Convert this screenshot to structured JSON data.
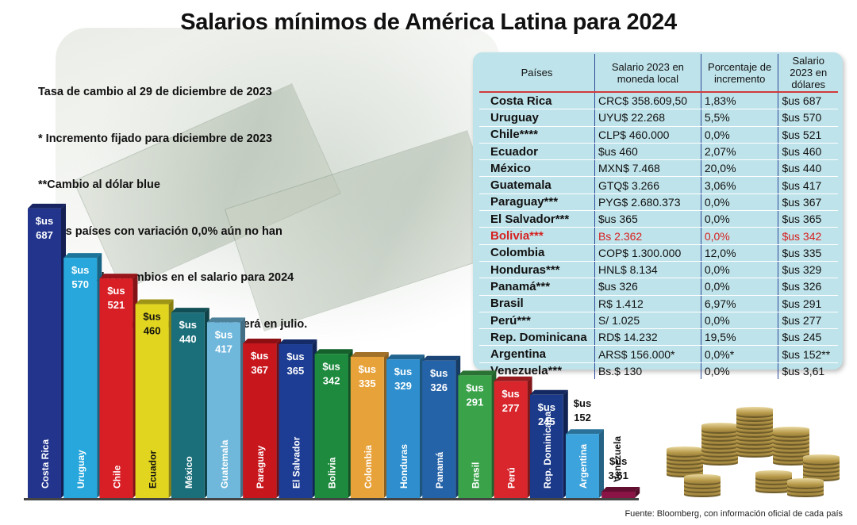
{
  "title": "Salarios mínimos de América Latina para 2024",
  "notes": [
    "Tasa de cambio al 29 de diciembre de 2023",
    "* Incremento fijado para diciembre de 2023",
    "**Cambio al dólar blue",
    "***Los países con variación 0,0% aún no han",
    "anunciados cambios en el salario para 2024",
    "****El siguiente incremento en Chile será en julio."
  ],
  "source": "Fuente: Bloomberg, con información oficial de cada país",
  "table": {
    "headers": [
      "Países",
      "Salario 2023 en moneda local",
      "Porcentaje de incremento",
      "Salario 2023 en dólares"
    ],
    "rows": [
      [
        "Costa Rica",
        "CRC$ 358.609,50",
        "1,83%",
        "$us 687"
      ],
      [
        "Uruguay",
        "UYU$ 22.268",
        "5,5%",
        "$us 570"
      ],
      [
        "Chile****",
        "CLP$ 460.000",
        "0,0%",
        "$us 521"
      ],
      [
        "Ecuador",
        "$us 460",
        "2,07%",
        "$us 460"
      ],
      [
        "México",
        "MXN$ 7.468",
        "20,0%",
        "$us 440"
      ],
      [
        "Guatemala",
        "GTQ$ 3.266",
        "3,06%",
        "$us 417"
      ],
      [
        "Paraguay***",
        "PYG$ 2.680.373",
        "0,0%",
        "$us 367"
      ],
      [
        "El Salvador***",
        "$us 365",
        "0,0%",
        "$us 365"
      ],
      [
        "Bolivia***",
        "Bs 2.362",
        "0,0%",
        "$us 342"
      ],
      [
        "Colombia",
        "COP$ 1.300.000",
        "12,0%",
        "$us 335"
      ],
      [
        "Honduras***",
        "HNL$ 8.134",
        "0,0%",
        "$us 329"
      ],
      [
        "Panamá***",
        "$us 326",
        "0,0%",
        "$us 326"
      ],
      [
        "Brasil",
        "R$ 1.412",
        "6,97%",
        "$us 291"
      ],
      [
        "Perú***",
        "S/ 1.025",
        "0,0%",
        "$us 277"
      ],
      [
        "Rep. Dominicana",
        "RD$ 14.232",
        "19,5%",
        "$us 245"
      ],
      [
        "Argentina",
        "ARS$ 156.000*",
        "0,0%*",
        "$us 152**"
      ],
      [
        "Venezuela***",
        "Bs.$ 130",
        "0,0%",
        "$us 3,61"
      ]
    ],
    "highlight_row": 8,
    "highlight_color": "#d6201f",
    "background": "#bfe3ea"
  },
  "chart_data": {
    "type": "bar",
    "categories": [
      "Costa Rica",
      "Uruguay",
      "Chile",
      "Ecuador",
      "México",
      "Guatemala",
      "Paraguay",
      "El Salvador",
      "Bolivia",
      "Colombia",
      "Honduras",
      "Panamá",
      "Brasil",
      "Perú",
      "Rep. Dominicana",
      "Argentina",
      "Venezuela"
    ],
    "values": [
      687,
      570,
      521,
      460,
      440,
      417,
      367,
      365,
      342,
      335,
      329,
      326,
      291,
      277,
      245,
      152,
      3.61
    ],
    "value_labels": [
      "$us 687",
      "$us 570",
      "$us 521",
      "$us 460",
      "$us 440",
      "$us 417",
      "$us 367",
      "$us 365",
      "$us 342",
      "$us 335",
      "$us 329",
      "$us 326",
      "$us 291",
      "$us 277",
      "$us 245",
      "$us 152",
      "$us 3,61"
    ],
    "colors": [
      "#22348c",
      "#27a7dc",
      "#d91f26",
      "#e2d51f",
      "#1a6f7a",
      "#6fb8dc",
      "#c8161d",
      "#1d3d94",
      "#1d8a3d",
      "#e8a23a",
      "#2f8fce",
      "#2563a8",
      "#3aa34a",
      "#d8262c",
      "#1c3a8a",
      "#3da3dc",
      "#8b1446"
    ],
    "ylim": [
      0,
      700
    ]
  }
}
